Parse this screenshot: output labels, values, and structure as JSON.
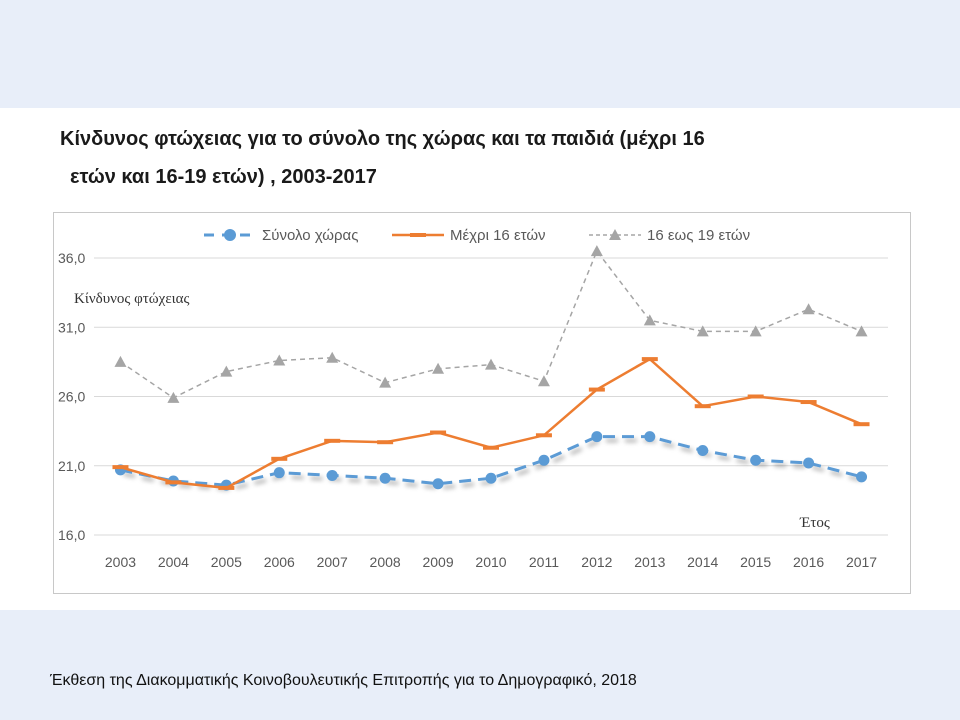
{
  "slide": {
    "title_line1": "Κίνδυνος φτώχειας για το σύνολο της χώρας και τα παιδιά (μέχρι 16",
    "title_line2": "ετών και 16-19 ετών) , 2003-2017",
    "source": "Έκθεση της Διακομματικής Κοινοβουλευτικής Επιτροπής για το Δημογραφικό, 2018"
  },
  "chart_data": {
    "type": "line",
    "title": "Κίνδυνος φτώχειας για το σύνολο της χώρας και τα παιδιά (μέχρι 16 ετών και 16-19 ετών) , 2003-2017",
    "ylabel": "Κίνδυνος φτώχειας",
    "xlabel": "Έτος",
    "categories": [
      "2003",
      "2004",
      "2005",
      "2006",
      "2007",
      "2008",
      "2009",
      "2010",
      "2011",
      "2012",
      "2013",
      "2014",
      "2015",
      "2016",
      "2017"
    ],
    "ylim": [
      16.0,
      36.0
    ],
    "yticks": [
      "16,0",
      "21,0",
      "26,0",
      "31,0",
      "36,0"
    ],
    "grid": true,
    "legend_position": "top",
    "series": [
      {
        "name": "Σύνολο χώρας",
        "color": "#5b9bd5",
        "style": "dashed-circle",
        "values": [
          20.7,
          19.9,
          19.6,
          20.5,
          20.3,
          20.1,
          19.7,
          20.1,
          21.4,
          23.1,
          23.1,
          22.1,
          21.4,
          21.2,
          20.2
        ]
      },
      {
        "name": "Μέχρι 16 ετών",
        "color": "#ed7d31",
        "style": "solid-square",
        "values": [
          20.9,
          19.8,
          19.4,
          21.5,
          22.8,
          22.7,
          23.4,
          22.3,
          23.2,
          26.5,
          28.7,
          25.3,
          26.0,
          25.6,
          24.0
        ]
      },
      {
        "name": "16 εως 19 ετών",
        "color": "#a5a5a5",
        "style": "dashed-triangle",
        "values": [
          28.5,
          25.9,
          27.8,
          28.6,
          28.8,
          27.0,
          28.0,
          28.3,
          27.1,
          36.5,
          31.5,
          30.7,
          30.7,
          32.3,
          30.7
        ]
      }
    ]
  }
}
